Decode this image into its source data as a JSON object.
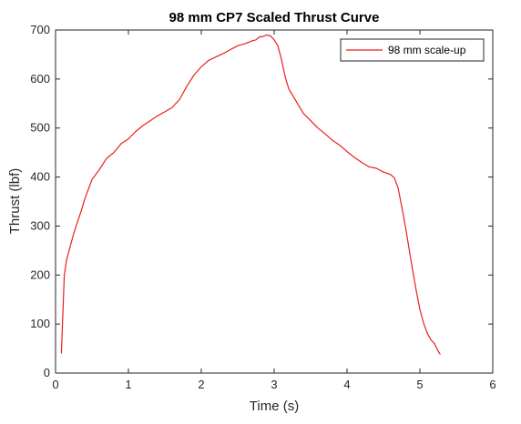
{
  "chart_data": {
    "type": "line",
    "title": "98 mm CP7 Scaled Thrust Curve",
    "xlabel": "Time (s)",
    "ylabel": "Thrust (lbf)",
    "xlim": [
      0,
      6
    ],
    "ylim": [
      0,
      700
    ],
    "xticks": [
      0,
      1,
      2,
      3,
      4,
      5,
      6
    ],
    "yticks": [
      0,
      100,
      200,
      300,
      400,
      500,
      600,
      700
    ],
    "grid": false,
    "legend_position": "top-right",
    "series": [
      {
        "name": "98 mm scale-up",
        "color": "#e8201c",
        "x": [
          0.08,
          0.1,
          0.12,
          0.15,
          0.2,
          0.25,
          0.3,
          0.35,
          0.4,
          0.5,
          0.6,
          0.7,
          0.8,
          0.9,
          1.0,
          1.1,
          1.2,
          1.3,
          1.4,
          1.5,
          1.6,
          1.7,
          1.8,
          1.9,
          2.0,
          2.1,
          2.2,
          2.3,
          2.4,
          2.5,
          2.6,
          2.7,
          2.75,
          2.8,
          2.85,
          2.9,
          2.95,
          3.0,
          3.05,
          3.1,
          3.15,
          3.2,
          3.3,
          3.4,
          3.5,
          3.6,
          3.7,
          3.8,
          3.9,
          4.0,
          4.1,
          4.2,
          4.3,
          4.4,
          4.5,
          4.55,
          4.6,
          4.65,
          4.7,
          4.75,
          4.8,
          4.85,
          4.9,
          4.95,
          5.0,
          5.05,
          5.1,
          5.15,
          5.2,
          5.25,
          5.28
        ],
        "y": [
          40,
          120,
          200,
          230,
          258,
          285,
          308,
          330,
          355,
          395,
          415,
          438,
          450,
          468,
          478,
          493,
          505,
          515,
          525,
          533,
          542,
          558,
          585,
          608,
          625,
          638,
          645,
          652,
          660,
          668,
          672,
          678,
          680,
          686,
          687,
          690,
          688,
          680,
          668,
          640,
          605,
          580,
          555,
          530,
          515,
          500,
          488,
          475,
          465,
          452,
          440,
          430,
          421,
          418,
          410,
          408,
          405,
          398,
          378,
          340,
          300,
          255,
          210,
          168,
          130,
          102,
          82,
          68,
          60,
          45,
          38
        ]
      }
    ]
  }
}
